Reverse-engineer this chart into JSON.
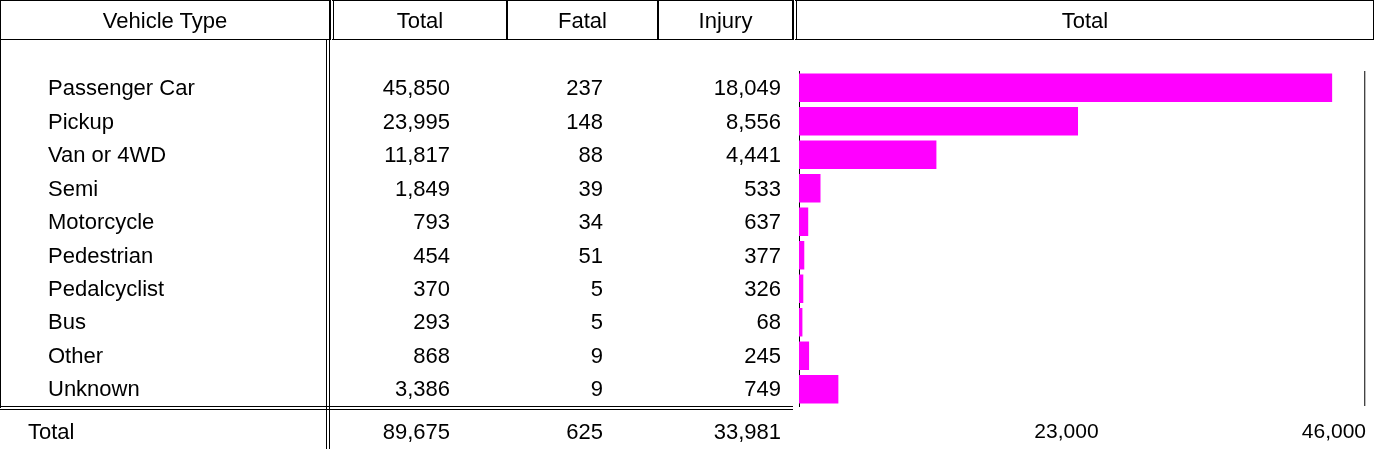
{
  "chart_data": [
    {
      "type": "other",
      "ylabel": "Vehicle Type",
      "categories": [
        "Passenger Car",
        "Pickup",
        "Van or 4WD",
        "Semi",
        "Motorcycle",
        "Pedestrian",
        "Pedalcyclist",
        "Bus",
        "Other",
        "Unknown",
        "Total"
      ],
      "series": [
        {
          "name": "Total",
          "values": [
            45850,
            23995,
            11817,
            1849,
            793,
            454,
            370,
            293,
            868,
            3386,
            89675
          ],
          "value_labels": [
            "45,850",
            "23,995",
            "11,817",
            "1,849",
            "793",
            "454",
            "370",
            "293",
            "868",
            "3,386",
            "89,675"
          ]
        },
        {
          "name": "Fatal",
          "values": [
            237,
            148,
            88,
            39,
            34,
            51,
            5,
            5,
            9,
            9,
            625
          ],
          "value_labels": [
            "237",
            "148",
            "88",
            "39",
            "34",
            "51",
            "5",
            "5",
            "9",
            "9",
            "625"
          ]
        },
        {
          "name": "Injury",
          "values": [
            18049,
            8556,
            4441,
            533,
            637,
            377,
            326,
            68,
            245,
            749,
            33981
          ],
          "value_labels": [
            "18,049",
            "8,556",
            "4,441",
            "533",
            "637",
            "377",
            "326",
            "68",
            "245",
            "749",
            "33,981"
          ]
        }
      ]
    },
    {
      "type": "bar",
      "orientation": "horizontal",
      "title": "Total",
      "categories": [
        null,
        null,
        null,
        null,
        null,
        null,
        null,
        null,
        null,
        null
      ],
      "values": [
        45850,
        23995,
        11817,
        1849,
        793,
        454,
        370,
        293,
        868,
        3386
      ],
      "color": "#ff00ff",
      "xlim": [
        0,
        48700
      ],
      "xticks": [
        {
          "value": 23000,
          "label": "23,000"
        },
        {
          "value": 46000,
          "label": "46,000"
        }
      ]
    }
  ]
}
